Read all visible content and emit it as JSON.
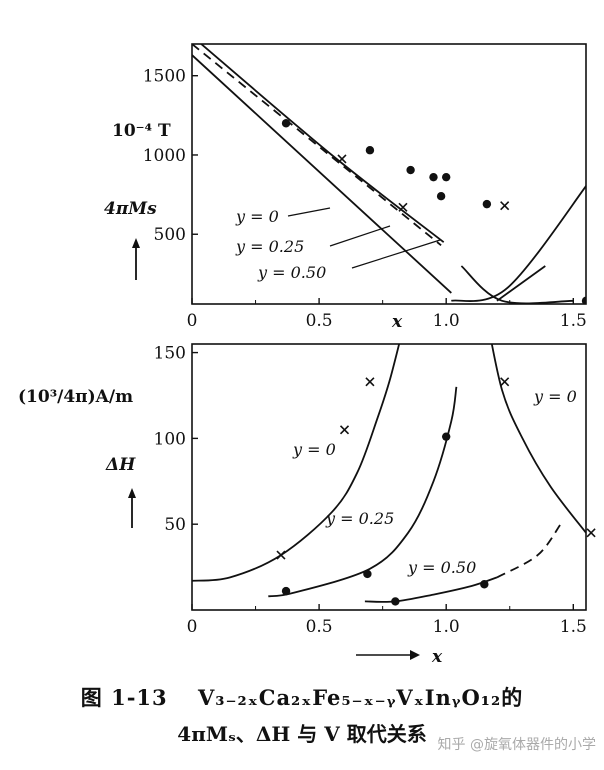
{
  "chart_data": [
    {
      "type": "line",
      "title": "",
      "xlabel": "x",
      "ylabel": "4πMs",
      "yunit": "10⁻⁴ T",
      "xlim": [
        0,
        1.55
      ],
      "ylim": [
        60,
        1700
      ],
      "xticks": [
        "0",
        "0.5",
        "1.0",
        "1.5"
      ],
      "yticks": [
        500,
        1000,
        1500
      ],
      "series": [
        {
          "name": "y = 0",
          "style": "solid",
          "points": [
            [
              0,
              1750
            ],
            [
              0.55,
              1000
            ],
            [
              0.99,
              450
            ]
          ]
        },
        {
          "name": "y = 0.25",
          "style": "dashed",
          "points": [
            [
              0,
              1700
            ],
            [
              0.98,
              430
            ]
          ]
        },
        {
          "name": "y = 0.50",
          "style": "solid",
          "points": [
            [
              0,
              1630
            ],
            [
              1.02,
              130
            ]
          ]
        },
        {
          "name": "y = 0.50 (right)",
          "style": "solid",
          "points": [
            [
              1.02,
              80
            ],
            [
              1.24,
              160
            ],
            [
              1.56,
              825
            ]
          ]
        },
        {
          "name": "y = 0.25 (right)",
          "style": "solid",
          "points": [
            [
              1.2,
              80
            ],
            [
              1.39,
              300
            ]
          ]
        },
        {
          "name": "y = 0 (right)",
          "style": "solid",
          "points": [
            [
              1.06,
              300
            ],
            [
              1.22,
              80
            ],
            [
              1.5,
              80
            ]
          ]
        }
      ],
      "markers": {
        "dots": [
          [
            0.37,
            1200
          ],
          [
            0.7,
            1030
          ],
          [
            0.86,
            905
          ],
          [
            0.95,
            860
          ],
          [
            1.0,
            860
          ],
          [
            0.98,
            740
          ],
          [
            1.16,
            690
          ],
          [
            1.55,
            80
          ]
        ],
        "crosses": [
          [
            0.59,
            975
          ],
          [
            0.83,
            670
          ],
          [
            1.23,
            680
          ]
        ]
      },
      "series_labels": [
        "y = 0",
        "y = 0.25",
        "y = 0.50"
      ]
    },
    {
      "type": "line",
      "title": "",
      "xlabel": "x",
      "ylabel": "ΔH",
      "yunit": "(10³/4π)A/m",
      "xlim": [
        0,
        1.55
      ],
      "ylim": [
        0,
        155
      ],
      "xticks": [
        "0",
        "0.5",
        "1.0",
        "1.5"
      ],
      "yticks": [
        50,
        100,
        150
      ],
      "series": [
        {
          "name": "y = 0 (left branch)",
          "style": "solid",
          "points": [
            [
              0,
              17
            ],
            [
              0.15,
              19
            ],
            [
              0.35,
              32
            ],
            [
              0.55,
              57
            ],
            [
              0.65,
              80
            ],
            [
              0.73,
              112
            ],
            [
              0.78,
              135
            ],
            [
              0.84,
              170
            ]
          ]
        },
        {
          "name": "y = 0 (right branch)",
          "style": "solid",
          "points": [
            [
              1.16,
              170
            ],
            [
              1.22,
              128
            ],
            [
              1.3,
              100
            ],
            [
              1.41,
              72
            ],
            [
              1.55,
              45
            ]
          ]
        },
        {
          "name": "y = 0.25",
          "style": "solid",
          "points": [
            [
              0.3,
              8
            ],
            [
              0.4,
              10
            ],
            [
              0.7,
              24
            ],
            [
              0.85,
              45
            ],
            [
              0.95,
              75
            ],
            [
              1.02,
              110
            ],
            [
              1.04,
              130
            ]
          ]
        },
        {
          "name": "y = 0.50",
          "style": "solid",
          "points": [
            [
              0.68,
              5
            ],
            [
              0.8,
              5
            ],
            [
              0.95,
              9
            ],
            [
              1.1,
              14
            ],
            [
              1.2,
              19
            ]
          ]
        },
        {
          "name": "y = 0.50 (dashed)",
          "style": "dashed",
          "points": [
            [
              1.2,
              19
            ],
            [
              1.36,
              32
            ],
            [
              1.45,
              50
            ]
          ]
        }
      ],
      "markers": {
        "dots": [
          [
            0.37,
            11
          ],
          [
            0.69,
            21
          ],
          [
            1.0,
            101
          ],
          [
            0.8,
            5
          ],
          [
            1.15,
            15
          ]
        ],
        "crosses": [
          [
            0.35,
            32
          ],
          [
            0.6,
            105
          ],
          [
            0.7,
            133
          ],
          [
            1.23,
            133
          ],
          [
            1.57,
            45
          ]
        ]
      },
      "series_labels": [
        "y = 0",
        "y = 0.25",
        "y = 0.50",
        "y = 0"
      ]
    }
  ],
  "caption": {
    "figure_number": "图 1-13",
    "formula": "V₃₋₂ₓCa₂ₓFe₅₋ₓ₋ᵧVₓInᵧO₁₂的",
    "line2": "4πMₛ、ΔH 与 V 取代关系"
  },
  "watermark": "知乎 @旋氧体器件的小学"
}
